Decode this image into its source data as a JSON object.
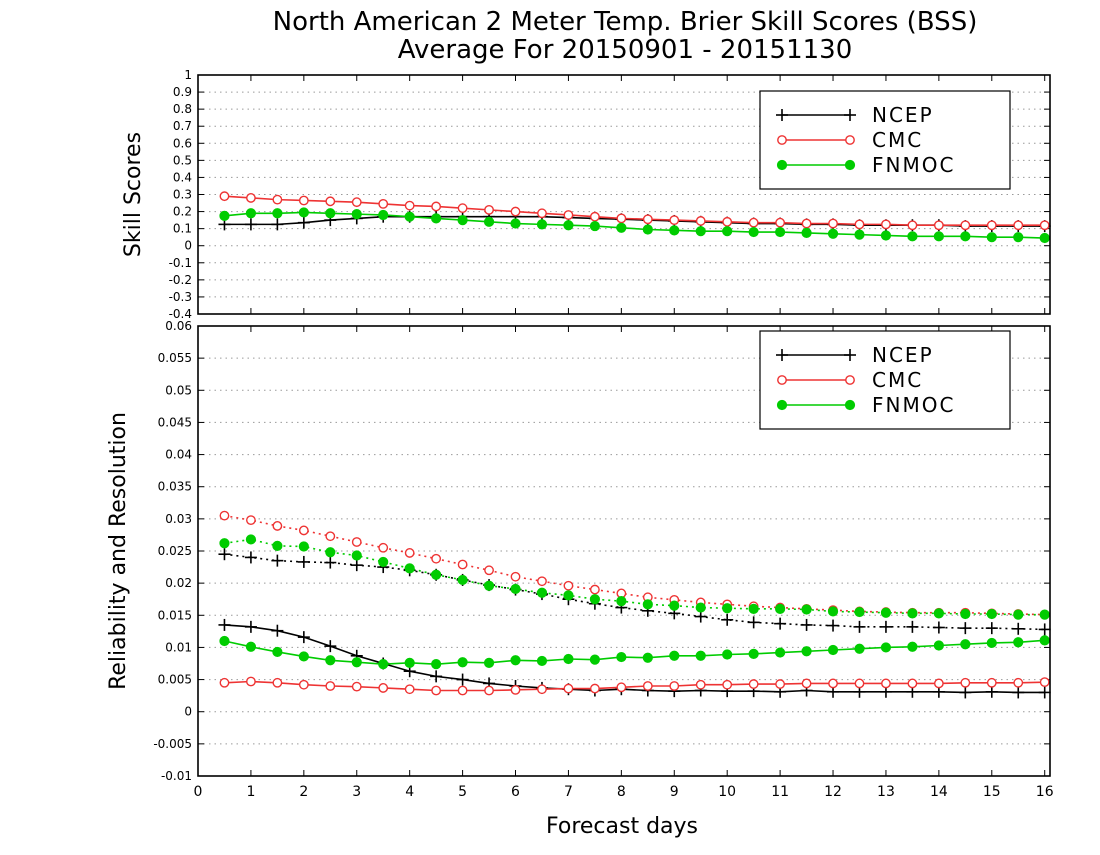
{
  "title_line1": "North American 2 Meter Temp. Brier Skill Scores (BSS)",
  "title_line2": "Average For 20150901 - 20151130",
  "colors": {
    "NCEP": "#000000",
    "CMC": "#ee3333",
    "FNMOC": "#00cc00"
  },
  "chart_data": [
    {
      "type": "line",
      "ylabel": "Skill Scores",
      "xlabel": "",
      "xlim": [
        0,
        16.1
      ],
      "ylim": [
        -0.4,
        1
      ],
      "yticks": [
        "-0.4",
        "-0.3",
        "-0.2",
        "-0.1",
        "0",
        "0.1",
        "0.2",
        "0.3",
        "0.4",
        "0.5",
        "0.6",
        "0.7",
        "0.8",
        "0.9",
        "1"
      ],
      "grid": true,
      "legend": "top-right",
      "legend_entries": [
        "NCEP",
        "CMC",
        "FNMOC"
      ],
      "x": [
        0.5,
        1,
        1.5,
        2,
        2.5,
        3,
        3.5,
        4,
        4.5,
        5,
        5.5,
        6,
        6.5,
        7,
        7.5,
        8,
        8.5,
        9,
        9.5,
        10,
        10.5,
        11,
        11.5,
        12,
        12.5,
        13,
        13.5,
        14,
        14.5,
        15,
        15.5,
        16
      ],
      "series": [
        {
          "name": "NCEP",
          "style": "solid",
          "marker": "plus",
          "values": [
            0.125,
            0.125,
            0.125,
            0.135,
            0.15,
            0.16,
            0.17,
            0.17,
            0.17,
            0.17,
            0.17,
            0.17,
            0.17,
            0.165,
            0.16,
            0.155,
            0.15,
            0.145,
            0.14,
            0.135,
            0.13,
            0.13,
            0.125,
            0.125,
            0.12,
            0.12,
            0.12,
            0.12,
            0.115,
            0.115,
            0.115,
            0.115
          ]
        },
        {
          "name": "CMC",
          "style": "solid",
          "marker": "open-circle",
          "values": [
            0.29,
            0.28,
            0.27,
            0.265,
            0.26,
            0.255,
            0.245,
            0.235,
            0.23,
            0.22,
            0.21,
            0.2,
            0.19,
            0.18,
            0.17,
            0.16,
            0.155,
            0.15,
            0.145,
            0.14,
            0.135,
            0.135,
            0.13,
            0.13,
            0.125,
            0.125,
            0.12,
            0.12,
            0.12,
            0.12,
            0.12,
            0.12
          ]
        },
        {
          "name": "FNMOC",
          "style": "solid",
          "marker": "filled-circle",
          "values": [
            0.175,
            0.19,
            0.19,
            0.195,
            0.19,
            0.185,
            0.18,
            0.17,
            0.16,
            0.15,
            0.14,
            0.13,
            0.125,
            0.12,
            0.115,
            0.105,
            0.095,
            0.09,
            0.085,
            0.085,
            0.08,
            0.08,
            0.075,
            0.07,
            0.065,
            0.06,
            0.055,
            0.055,
            0.055,
            0.05,
            0.05,
            0.045
          ]
        }
      ]
    },
    {
      "type": "line",
      "ylabel": "Reliability and Resolution",
      "xlabel": "Forecast days",
      "xlim": [
        0,
        16.1
      ],
      "ylim": [
        -0.01,
        0.06
      ],
      "yticks": [
        "-0.01",
        "-0.005",
        "0",
        "0.005",
        "0.01",
        "0.015",
        "0.02",
        "0.025",
        "0.03",
        "0.035",
        "0.04",
        "0.045",
        "0.05",
        "0.055",
        "0.06"
      ],
      "xticks": [
        "0",
        "1",
        "2",
        "3",
        "4",
        "5",
        "6",
        "7",
        "8",
        "9",
        "10",
        "11",
        "12",
        "13",
        "14",
        "15",
        "16"
      ],
      "grid": true,
      "legend": "top-right",
      "legend_entries": [
        "NCEP",
        "CMC",
        "FNMOC"
      ],
      "x": [
        0.5,
        1,
        1.5,
        2,
        2.5,
        3,
        3.5,
        4,
        4.5,
        5,
        5.5,
        6,
        6.5,
        7,
        7.5,
        8,
        8.5,
        9,
        9.5,
        10,
        10.5,
        11,
        11.5,
        12,
        12.5,
        13,
        13.5,
        14,
        14.5,
        15,
        15.5,
        16
      ],
      "series": [
        {
          "name": "NCEP",
          "style": "dotted",
          "marker": "plus",
          "values": [
            0.0245,
            0.024,
            0.0235,
            0.0233,
            0.0232,
            0.0228,
            0.0225,
            0.022,
            0.0213,
            0.0205,
            0.0197,
            0.019,
            0.0183,
            0.0175,
            0.0168,
            0.0162,
            0.0157,
            0.0153,
            0.0148,
            0.0143,
            0.0139,
            0.0137,
            0.0135,
            0.0134,
            0.0132,
            0.0132,
            0.0132,
            0.0131,
            0.013,
            0.013,
            0.0129,
            0.0128
          ]
        },
        {
          "name": "NCEP",
          "style": "solid",
          "marker": "plus",
          "values": [
            0.0135,
            0.0132,
            0.0126,
            0.0116,
            0.0102,
            0.0087,
            0.0075,
            0.0063,
            0.0055,
            0.005,
            0.0044,
            0.004,
            0.0037,
            0.0035,
            0.0033,
            0.0035,
            0.0033,
            0.0032,
            0.0033,
            0.0032,
            0.0032,
            0.0031,
            0.0033,
            0.0031,
            0.0031,
            0.0031,
            0.0031,
            0.0031,
            0.003,
            0.0031,
            0.003,
            0.003
          ]
        },
        {
          "name": "CMC",
          "style": "dotted",
          "marker": "open-circle",
          "values": [
            0.0305,
            0.0298,
            0.0289,
            0.0282,
            0.0273,
            0.0264,
            0.0255,
            0.0247,
            0.0238,
            0.0229,
            0.022,
            0.021,
            0.0203,
            0.0196,
            0.019,
            0.0184,
            0.0178,
            0.0174,
            0.017,
            0.0167,
            0.0164,
            0.0162,
            0.016,
            0.0158,
            0.0156,
            0.0155,
            0.0154,
            0.0154,
            0.0154,
            0.0153,
            0.0152,
            0.0151
          ]
        },
        {
          "name": "CMC",
          "style": "solid",
          "marker": "open-circle",
          "values": [
            0.0045,
            0.0047,
            0.0045,
            0.0042,
            0.004,
            0.0039,
            0.0037,
            0.0035,
            0.0033,
            0.0033,
            0.0033,
            0.0034,
            0.0035,
            0.0036,
            0.0036,
            0.0038,
            0.004,
            0.004,
            0.0042,
            0.0042,
            0.0043,
            0.0043,
            0.0044,
            0.0044,
            0.0044,
            0.0044,
            0.0044,
            0.0044,
            0.0045,
            0.0045,
            0.0045,
            0.0046
          ]
        },
        {
          "name": "FNMOC",
          "style": "dotted",
          "marker": "filled-circle",
          "values": [
            0.0262,
            0.0268,
            0.0258,
            0.0257,
            0.0248,
            0.0243,
            0.0233,
            0.0223,
            0.0213,
            0.0205,
            0.0196,
            0.0191,
            0.0185,
            0.0181,
            0.0175,
            0.0172,
            0.0167,
            0.0165,
            0.0162,
            0.0161,
            0.016,
            0.016,
            0.0159,
            0.0156,
            0.0155,
            0.0154,
            0.0153,
            0.0153,
            0.0152,
            0.0152,
            0.0151,
            0.0151
          ]
        },
        {
          "name": "FNMOC",
          "style": "solid",
          "marker": "filled-circle",
          "values": [
            0.011,
            0.0101,
            0.0093,
            0.0086,
            0.008,
            0.0077,
            0.0074,
            0.0076,
            0.0074,
            0.0077,
            0.0076,
            0.008,
            0.0079,
            0.0082,
            0.0081,
            0.0085,
            0.0084,
            0.0087,
            0.0087,
            0.0089,
            0.009,
            0.0092,
            0.0094,
            0.0096,
            0.0098,
            0.01,
            0.0101,
            0.0103,
            0.0105,
            0.0107,
            0.0108,
            0.0111
          ]
        }
      ]
    }
  ]
}
